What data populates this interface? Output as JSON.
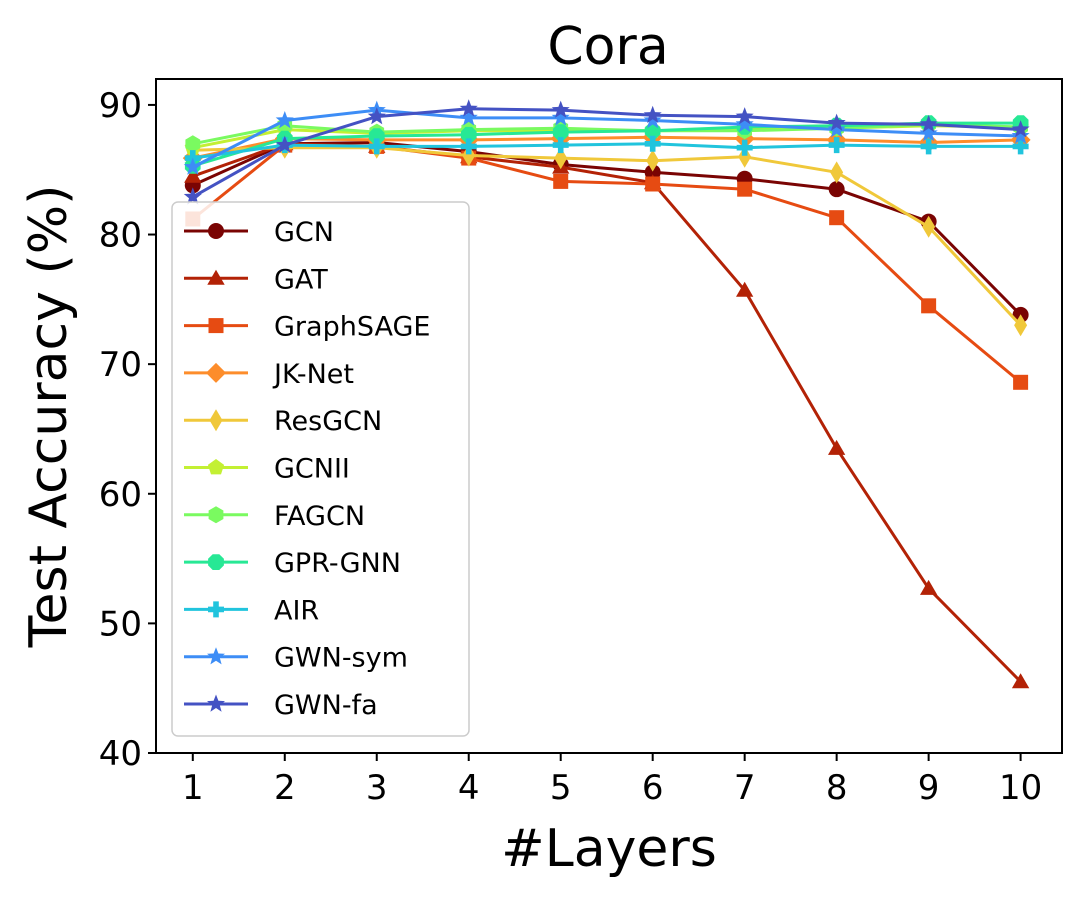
{
  "chart_data": {
    "type": "line",
    "title": "Cora",
    "xlabel": "#Layers",
    "ylabel": "Test Accuracy (%)",
    "x": [
      1,
      2,
      3,
      4,
      5,
      6,
      7,
      8,
      9,
      10
    ],
    "x_tick_labels": [
      "1",
      "2",
      "3",
      "4",
      "5",
      "6",
      "7",
      "8",
      "9",
      "10"
    ],
    "xlim": [
      0.6,
      10.45
    ],
    "ylim": [
      40,
      92
    ],
    "y_ticks": [
      40,
      50,
      60,
      70,
      80,
      90
    ],
    "y_tick_labels": [
      "40",
      "50",
      "60",
      "70",
      "80",
      "90"
    ],
    "grid": false,
    "legend_position": "lower-left",
    "series": [
      {
        "name": "GCN",
        "color": "#7a0403",
        "marker": "circle",
        "values": [
          83.8,
          87.0,
          87.1,
          86.4,
          85.4,
          84.8,
          84.3,
          83.5,
          81.0,
          73.8
        ]
      },
      {
        "name": "GAT",
        "color": "#b32206",
        "marker": "triangle",
        "values": [
          84.5,
          87.0,
          86.8,
          86.0,
          85.2,
          84.0,
          75.7,
          63.5,
          52.7,
          45.5
        ]
      },
      {
        "name": "GraphSAGE",
        "color": "#e64b12",
        "marker": "square",
        "values": [
          81.2,
          86.9,
          86.8,
          85.9,
          84.1,
          83.9,
          83.5,
          81.3,
          74.5,
          68.6
        ]
      },
      {
        "name": "JK-Net",
        "color": "#fd8d2b",
        "marker": "diamond",
        "values": [
          85.9,
          87.4,
          87.3,
          87.3,
          87.4,
          87.5,
          87.4,
          87.3,
          87.1,
          87.3
        ]
      },
      {
        "name": "ResGCN",
        "color": "#f0c83a",
        "marker": "thin_diamond",
        "values": [
          86.5,
          86.7,
          86.7,
          86.1,
          85.9,
          85.7,
          86.0,
          84.8,
          80.6,
          73.0
        ]
      },
      {
        "name": "GCNII",
        "color": "#c3f033",
        "marker": "pentagon",
        "values": [
          86.7,
          88.1,
          87.8,
          88.0,
          88.0,
          88.0,
          88.1,
          88.2,
          88.4,
          88.3
        ]
      },
      {
        "name": "FAGCN",
        "color": "#7afa60",
        "marker": "hexagon",
        "values": [
          87.0,
          88.4,
          87.9,
          88.1,
          88.2,
          88.0,
          88.0,
          88.2,
          88.5,
          88.3
        ]
      },
      {
        "name": "GPR-GNN",
        "color": "#27e895",
        "marker": "octagon",
        "values": [
          85.3,
          87.4,
          87.6,
          87.7,
          87.9,
          88.0,
          88.3,
          88.4,
          88.6,
          88.6
        ]
      },
      {
        "name": "AIR",
        "color": "#21c4dd",
        "marker": "plus",
        "values": [
          85.9,
          86.9,
          86.8,
          86.8,
          86.9,
          87.0,
          86.7,
          86.9,
          86.8,
          86.8
        ]
      },
      {
        "name": "GWN-sym",
        "color": "#3d8df6",
        "marker": "star",
        "values": [
          85.2,
          88.8,
          89.6,
          89.0,
          89.0,
          88.8,
          88.5,
          88.1,
          87.8,
          87.6
        ]
      },
      {
        "name": "GWN-fa",
        "color": "#4452c3",
        "marker": "star",
        "values": [
          82.9,
          86.9,
          89.1,
          89.7,
          89.6,
          89.2,
          89.1,
          88.6,
          88.5,
          88.1
        ]
      }
    ]
  }
}
